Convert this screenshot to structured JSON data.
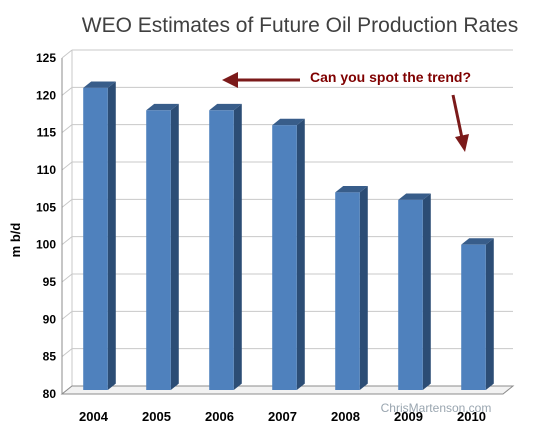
{
  "chart_data": {
    "type": "bar",
    "title": "WEO Estimates of Future Oil Production Rates",
    "ylabel": "m b/d",
    "xlabel": "",
    "categories": [
      "2004",
      "2005",
      "2006",
      "2007",
      "2008",
      "2009",
      "2010"
    ],
    "values": [
      121,
      118,
      118,
      116,
      107,
      106,
      100
    ],
    "ylim": [
      80,
      125
    ],
    "yticks": [
      80,
      85,
      90,
      95,
      100,
      105,
      110,
      115,
      120,
      125
    ],
    "grid": true,
    "legend": "none",
    "annotation": "Can you spot the trend?",
    "watermark": "ChrisMartenson.com",
    "colors": {
      "bar_front": "#4f81bd",
      "bar_side": "#2c4d75",
      "bar_top": "#385d8a",
      "annotation": "#7f0000",
      "arrow": "#7b1a1a",
      "grid": "#c8c8c8",
      "title": "#404040",
      "watermark": "#9aa6b0"
    }
  }
}
